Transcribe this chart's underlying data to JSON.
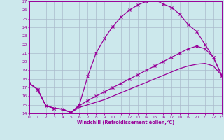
{
  "xlabel": "Windchill (Refroidissement éolien,°C)",
  "background_color": "#cce8ec",
  "line_color": "#990099",
  "grid_color": "#aabbcc",
  "xlim": [
    0,
    23
  ],
  "ylim": [
    14,
    27
  ],
  "xticks": [
    0,
    1,
    2,
    3,
    4,
    5,
    6,
    7,
    8,
    9,
    10,
    11,
    12,
    13,
    14,
    15,
    16,
    17,
    18,
    19,
    20,
    21,
    22,
    23
  ],
  "yticks": [
    14,
    15,
    16,
    17,
    18,
    19,
    20,
    21,
    22,
    23,
    24,
    25,
    26,
    27
  ],
  "curve1_x": [
    0,
    1,
    2,
    3,
    4,
    5,
    6,
    7,
    8,
    9,
    10,
    11,
    12,
    13,
    14,
    15,
    16,
    17,
    18,
    19,
    20,
    21,
    22,
    23
  ],
  "curve1_y": [
    17.5,
    16.8,
    14.9,
    14.6,
    14.5,
    14.1,
    15.0,
    18.3,
    21.0,
    22.7,
    24.1,
    25.2,
    26.0,
    26.6,
    27.0,
    27.2,
    26.7,
    26.3,
    25.5,
    24.3,
    23.5,
    22.0,
    20.5,
    18.4
  ],
  "curve2_x": [
    0,
    1,
    2,
    3,
    4,
    5,
    6,
    7,
    8,
    9,
    10,
    11,
    12,
    13,
    14,
    15,
    16,
    17,
    18,
    19,
    20,
    21,
    22,
    23
  ],
  "curve2_y": [
    17.5,
    16.8,
    14.9,
    14.6,
    14.5,
    14.1,
    14.9,
    15.5,
    16.0,
    16.5,
    17.0,
    17.5,
    18.0,
    18.5,
    19.0,
    19.5,
    20.0,
    20.5,
    21.0,
    21.5,
    21.8,
    21.5,
    20.5,
    18.4
  ],
  "curve3_x": [
    0,
    1,
    2,
    3,
    4,
    5,
    6,
    7,
    8,
    9,
    10,
    11,
    12,
    13,
    14,
    15,
    16,
    17,
    18,
    19,
    20,
    21,
    22,
    23
  ],
  "curve3_y": [
    17.5,
    16.8,
    14.9,
    14.6,
    14.5,
    14.1,
    14.7,
    15.0,
    15.3,
    15.6,
    16.0,
    16.4,
    16.8,
    17.2,
    17.6,
    18.0,
    18.4,
    18.8,
    19.2,
    19.5,
    19.7,
    19.8,
    19.5,
    18.4
  ]
}
